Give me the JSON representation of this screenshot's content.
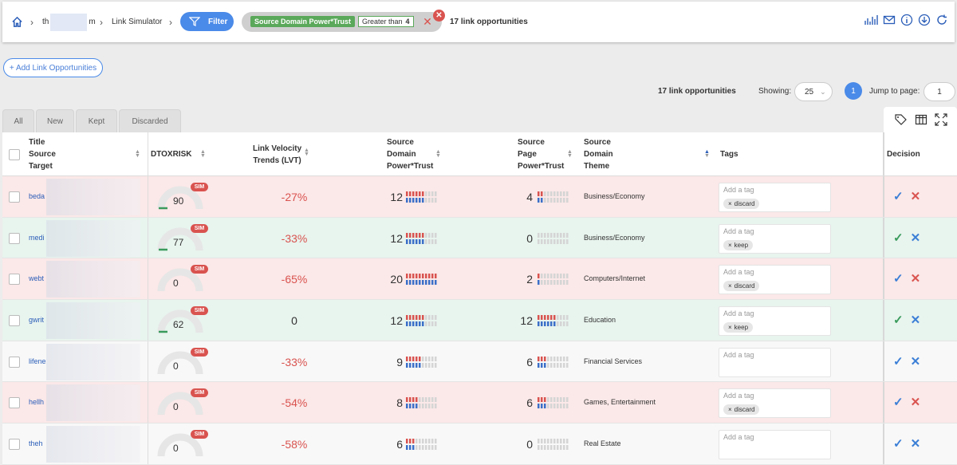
{
  "breadcrumb": {
    "domain_prefix": "th",
    "domain_suffix": "m",
    "page": "Link Simulator"
  },
  "toolbar": {
    "filter_label": "Filter",
    "filter_chip_metric": "Source Domain Power*Trust",
    "filter_chip_operator": "Greater than",
    "filter_chip_value": "4",
    "opportunities_count_text": "17 link opportunities"
  },
  "actions": {
    "add_label": "+ Add Link Opportunities"
  },
  "pagination": {
    "count_text": "17 link opportunities",
    "showing_label": "Showing:",
    "page_size": "25",
    "current_page": "1",
    "jump_label": "Jump to page:",
    "jump_value": "1"
  },
  "tabs": [
    "All",
    "New",
    "Kept",
    "Discarded"
  ],
  "columns": {
    "title": [
      "Title",
      "Source",
      "Target"
    ],
    "dtoxrisk": "DTOXRISK",
    "lvt": [
      "Link Velocity",
      "Trends (LVT)"
    ],
    "sdpt": [
      "Source",
      "Domain",
      "Power*Trust"
    ],
    "sppt": [
      "Source",
      "Page",
      "Power*Trust"
    ],
    "theme": [
      "Source",
      "Domain",
      "Theme"
    ],
    "tags": "Tags",
    "decision": "Decision"
  },
  "sim_label": "SIM",
  "tag_placeholder": "Add a tag",
  "rows": [
    {
      "title": "beda",
      "dtox": "90",
      "dtox_level": 0.9,
      "lvt": "-27%",
      "sdpt": "12",
      "sppt": "4",
      "theme": "Business/Economy",
      "tag": "discard",
      "status": "red",
      "decision": "discard"
    },
    {
      "title": "medi",
      "dtox": "77",
      "dtox_level": 0.77,
      "lvt": "-33%",
      "sdpt": "12",
      "sppt": "0",
      "theme": "Business/Economy",
      "tag": "keep",
      "status": "green",
      "decision": "keep"
    },
    {
      "title": "webt",
      "dtox": "0",
      "dtox_level": 0,
      "lvt": "-65%",
      "sdpt": "20",
      "sppt": "2",
      "theme": "Computers/Internet",
      "tag": "discard",
      "status": "red",
      "decision": "discard"
    },
    {
      "title": "gwrit",
      "dtox": "62",
      "dtox_level": 0.62,
      "lvt": "0",
      "sdpt": "12",
      "sppt": "12",
      "theme": "Education",
      "tag": "keep",
      "status": "green",
      "decision": "keep"
    },
    {
      "title": "lifene",
      "dtox": "0",
      "dtox_level": 0,
      "lvt": "-33%",
      "sdpt": "9",
      "sppt": "6",
      "theme": "Financial Services",
      "tag": "",
      "status": "white",
      "decision": "none"
    },
    {
      "title": "hellh",
      "dtox": "0",
      "dtox_level": 0,
      "lvt": "-54%",
      "sdpt": "8",
      "sppt": "6",
      "theme": "Games, Entertainment",
      "tag": "discard",
      "status": "red",
      "decision": "discard"
    },
    {
      "title": "theh",
      "dtox": "0",
      "dtox_level": 0,
      "lvt": "-58%",
      "sdpt": "6",
      "sppt": "0",
      "theme": "Real Estate",
      "tag": "",
      "status": "white",
      "decision": "none"
    }
  ],
  "colors": {
    "accent": "#4a8ae8",
    "danger": "#d9534f",
    "success": "#3a9b5c",
    "row_discard": "#fbe8e8",
    "row_keep": "#e8f4ee"
  }
}
